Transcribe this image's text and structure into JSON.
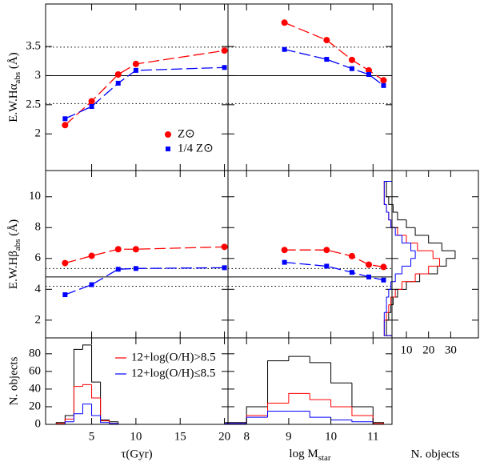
{
  "chart_data": [
    {
      "type": "line",
      "ylabel": {
        "text": "E.W.Hα",
        "sub": "abs",
        "after": " (Å)"
      },
      "xlim": [
        -0.2,
        20.4
      ],
      "ylim": [
        1.37,
        4.23
      ],
      "yticks": [
        2,
        2.5,
        3,
        3.5
      ],
      "x": [
        2,
        5,
        8,
        10,
        20
      ],
      "hlines": [
        {
          "value": 3.0,
          "style": "solid"
        },
        {
          "value": 3.49,
          "style": "dotted"
        },
        {
          "value": 2.52,
          "style": "dotted"
        }
      ],
      "series": [
        {
          "name": "Z⊙",
          "color": "#ff0000",
          "marker": "circle",
          "values": [
            2.15,
            2.56,
            3.02,
            3.2,
            3.43
          ]
        },
        {
          "name": "1/4 Z⊙",
          "color": "#0000ff",
          "marker": "square",
          "values": [
            2.26,
            2.47,
            2.87,
            3.09,
            3.14
          ]
        }
      ]
    },
    {
      "type": "line",
      "xlim": [
        7.56,
        11.45
      ],
      "ylim": [
        1.37,
        4.23
      ],
      "x": [
        8.9,
        9.9,
        10.5,
        10.9,
        11.25
      ],
      "hlines": [
        {
          "value": 3.0,
          "style": "solid"
        },
        {
          "value": 3.49,
          "style": "dotted"
        },
        {
          "value": 2.52,
          "style": "dotted"
        }
      ],
      "series": [
        {
          "color": "#ff0000",
          "marker": "circle",
          "values": [
            3.91,
            3.61,
            3.27,
            3.09,
            2.92
          ]
        },
        {
          "color": "#0000ff",
          "marker": "square",
          "values": [
            3.45,
            3.28,
            3.12,
            3.02,
            2.83
          ]
        }
      ]
    },
    {
      "type": "line",
      "ylabel": {
        "text": "E.W.Hβ",
        "sub": "abs",
        "after": " (Å)"
      },
      "xlim": [
        -0.2,
        20.4
      ],
      "ylim": [
        0.85,
        11.7
      ],
      "yticks": [
        2,
        4,
        6,
        8,
        10
      ],
      "x": [
        2,
        5,
        8,
        10,
        20
      ],
      "hlines": [
        {
          "value": 4.8,
          "style": "solid"
        },
        {
          "value": 5.35,
          "style": "dotted"
        },
        {
          "value": 4.2,
          "style": "dotted"
        }
      ],
      "series": [
        {
          "color": "#ff0000",
          "marker": "circle",
          "values": [
            5.7,
            6.17,
            6.6,
            6.6,
            6.75
          ]
        },
        {
          "color": "#0000ff",
          "marker": "square",
          "values": [
            3.65,
            4.3,
            5.3,
            5.35,
            5.4
          ]
        }
      ]
    },
    {
      "type": "line",
      "xlim": [
        7.56,
        11.45
      ],
      "ylim": [
        0.85,
        11.7
      ],
      "x": [
        8.9,
        9.9,
        10.5,
        10.9,
        11.25
      ],
      "hlines": [
        {
          "value": 4.8,
          "style": "solid"
        },
        {
          "value": 5.35,
          "style": "dotted"
        },
        {
          "value": 4.2,
          "style": "dotted"
        }
      ],
      "series": [
        {
          "color": "#ff0000",
          "marker": "circle",
          "values": [
            6.55,
            6.55,
            6.15,
            5.6,
            5.45
          ]
        },
        {
          "color": "#0000ff",
          "marker": "square",
          "values": [
            5.75,
            5.5,
            5.1,
            4.8,
            4.6
          ]
        }
      ]
    },
    {
      "type": "histogram",
      "ylabel": "N. objects",
      "xlabel": "τ(Gyr)",
      "xlim": [
        -0.2,
        20.4
      ],
      "xticks": [
        5,
        10,
        15,
        20
      ],
      "ylim": [
        0,
        98
      ],
      "yticks": [
        0,
        20,
        40,
        60,
        80
      ],
      "bins": [
        1,
        2,
        3,
        4,
        5,
        6,
        7,
        8,
        9,
        10,
        11,
        12,
        13,
        14,
        15,
        16,
        17,
        18,
        19,
        20
      ],
      "series": [
        {
          "color": "#000000",
          "values": [
            2,
            10,
            85,
            90,
            48,
            5,
            3,
            0,
            0,
            0,
            0,
            0,
            0,
            0,
            0,
            0,
            0,
            0,
            0
          ]
        },
        {
          "name": "12+log(O/H)>8.5",
          "color": "#ff0000",
          "values": [
            1,
            6,
            43,
            45,
            30,
            4,
            1,
            0,
            0,
            0,
            0,
            0,
            0,
            0,
            0,
            0,
            0,
            0,
            0
          ]
        },
        {
          "name": "12+log(O/H)≤8.5",
          "color": "#0000ff",
          "values": [
            0,
            3,
            12,
            23,
            10,
            2,
            1,
            0,
            0,
            0,
            0,
            0,
            0,
            0,
            0,
            0,
            0,
            0,
            0
          ]
        }
      ]
    },
    {
      "type": "histogram",
      "xlabel": {
        "text": "log M",
        "sub": "star"
      },
      "xlim": [
        7.56,
        11.45
      ],
      "xticks": [
        8,
        9,
        10,
        11
      ],
      "ylim": [
        0,
        98
      ],
      "bins": [
        7.5,
        8,
        8.5,
        9,
        9.5,
        10,
        10.5,
        11,
        11.25
      ],
      "series": [
        {
          "color": "#000000",
          "values": [
            2,
            20,
            72,
            77,
            70,
            47,
            20,
            2
          ]
        },
        {
          "color": "#ff0000",
          "values": [
            1,
            10,
            24,
            35,
            28,
            20,
            10,
            1
          ]
        },
        {
          "color": "#0000ff",
          "values": [
            1,
            8,
            15,
            15,
            8,
            5,
            3,
            0
          ]
        }
      ]
    },
    {
      "type": "histogram",
      "orientation": "horizontal",
      "xlabel": "N. objects",
      "xlim": [
        3.5,
        42.5
      ],
      "xticks": [
        10,
        20,
        30
      ],
      "ylim": [
        0.85,
        11.7
      ],
      "bins": [
        1,
        1.5,
        2,
        2.5,
        3,
        3.5,
        4,
        4.5,
        5,
        5.5,
        6,
        6.5,
        7,
        7.5,
        8,
        8.5,
        9,
        9.5,
        10,
        10.5,
        11
      ],
      "series": [
        {
          "color": "#000000",
          "values": [
            1,
            1,
            2,
            3,
            4,
            6,
            10,
            16,
            24,
            28,
            32,
            26,
            20,
            14,
            10,
            6,
            4,
            2,
            1,
            1
          ]
        },
        {
          "color": "#ff0000",
          "values": [
            0,
            0,
            1,
            2,
            3,
            5,
            8,
            14,
            20,
            25,
            22,
            15,
            10,
            6,
            3,
            2,
            1,
            0,
            0,
            0
          ]
        },
        {
          "color": "#0000ff",
          "values": [
            0,
            0,
            0,
            1,
            1,
            2,
            3,
            5,
            8,
            12,
            14,
            12,
            8,
            5,
            3,
            2,
            1,
            0,
            0,
            0
          ]
        }
      ]
    }
  ]
}
